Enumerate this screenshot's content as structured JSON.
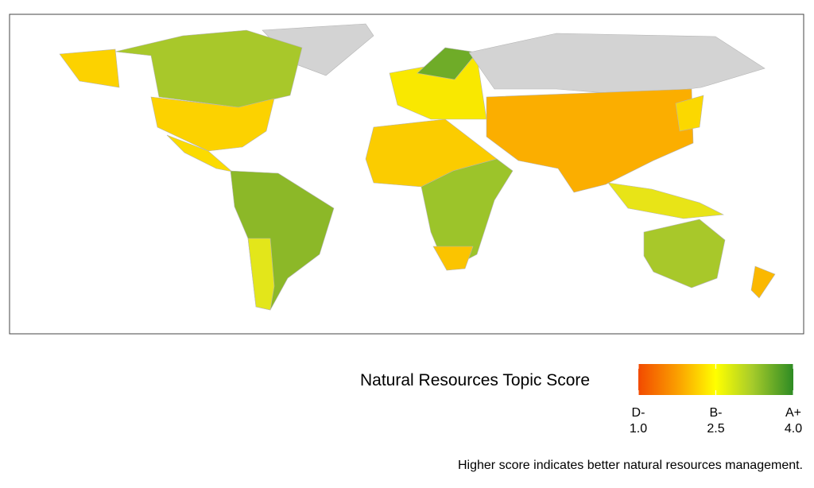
{
  "legend": {
    "title": "Natural Resources Topic Score",
    "ticks": [
      {
        "value": 1,
        "label": "1.0",
        "grade": "D-"
      },
      {
        "value": 2.5,
        "label": "2.5",
        "grade": "B-"
      },
      {
        "value": 4,
        "label": "4.0",
        "grade": "A+"
      }
    ],
    "range": [
      1,
      4
    ],
    "colorscale": [
      {
        "value": 1,
        "color": "#f24a00"
      },
      {
        "value": 1.8,
        "color": "#fba400"
      },
      {
        "value": 2.5,
        "color": "#ffff00"
      },
      {
        "value": 3.2,
        "color": "#a7cc2a"
      },
      {
        "value": 4,
        "color": "#2e8b24"
      }
    ]
  },
  "caption": "Higher score indicates better natural resources management."
}
